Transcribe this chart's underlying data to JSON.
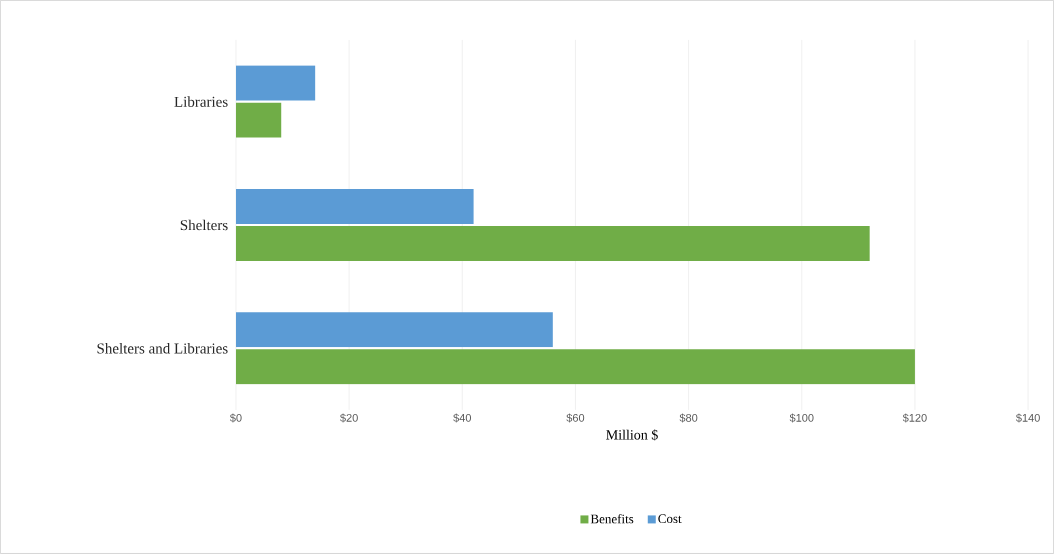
{
  "chart_data": {
    "type": "bar",
    "orientation": "horizontal",
    "xlabel": "Million  $",
    "categories": [
      "Libraries",
      "Shelters",
      "Shelters and Libraries"
    ],
    "series": [
      {
        "name": "Cost",
        "color": "#5b9bd5",
        "values": [
          14,
          42,
          56
        ]
      },
      {
        "name": "Benefits",
        "color": "#70ad47",
        "values": [
          8,
          112,
          120
        ]
      }
    ],
    "xlim": [
      0,
      140
    ],
    "xticks": [
      {
        "value": 0,
        "label": "$0"
      },
      {
        "value": 20,
        "label": "$20"
      },
      {
        "value": 40,
        "label": "$40"
      },
      {
        "value": 60,
        "label": "$60"
      },
      {
        "value": 80,
        "label": "$80"
      },
      {
        "value": 100,
        "label": "$100"
      },
      {
        "value": 120,
        "label": "$120"
      },
      {
        "value": 140,
        "label": "$140"
      }
    ],
    "grid": "x",
    "legend": "bottom"
  }
}
